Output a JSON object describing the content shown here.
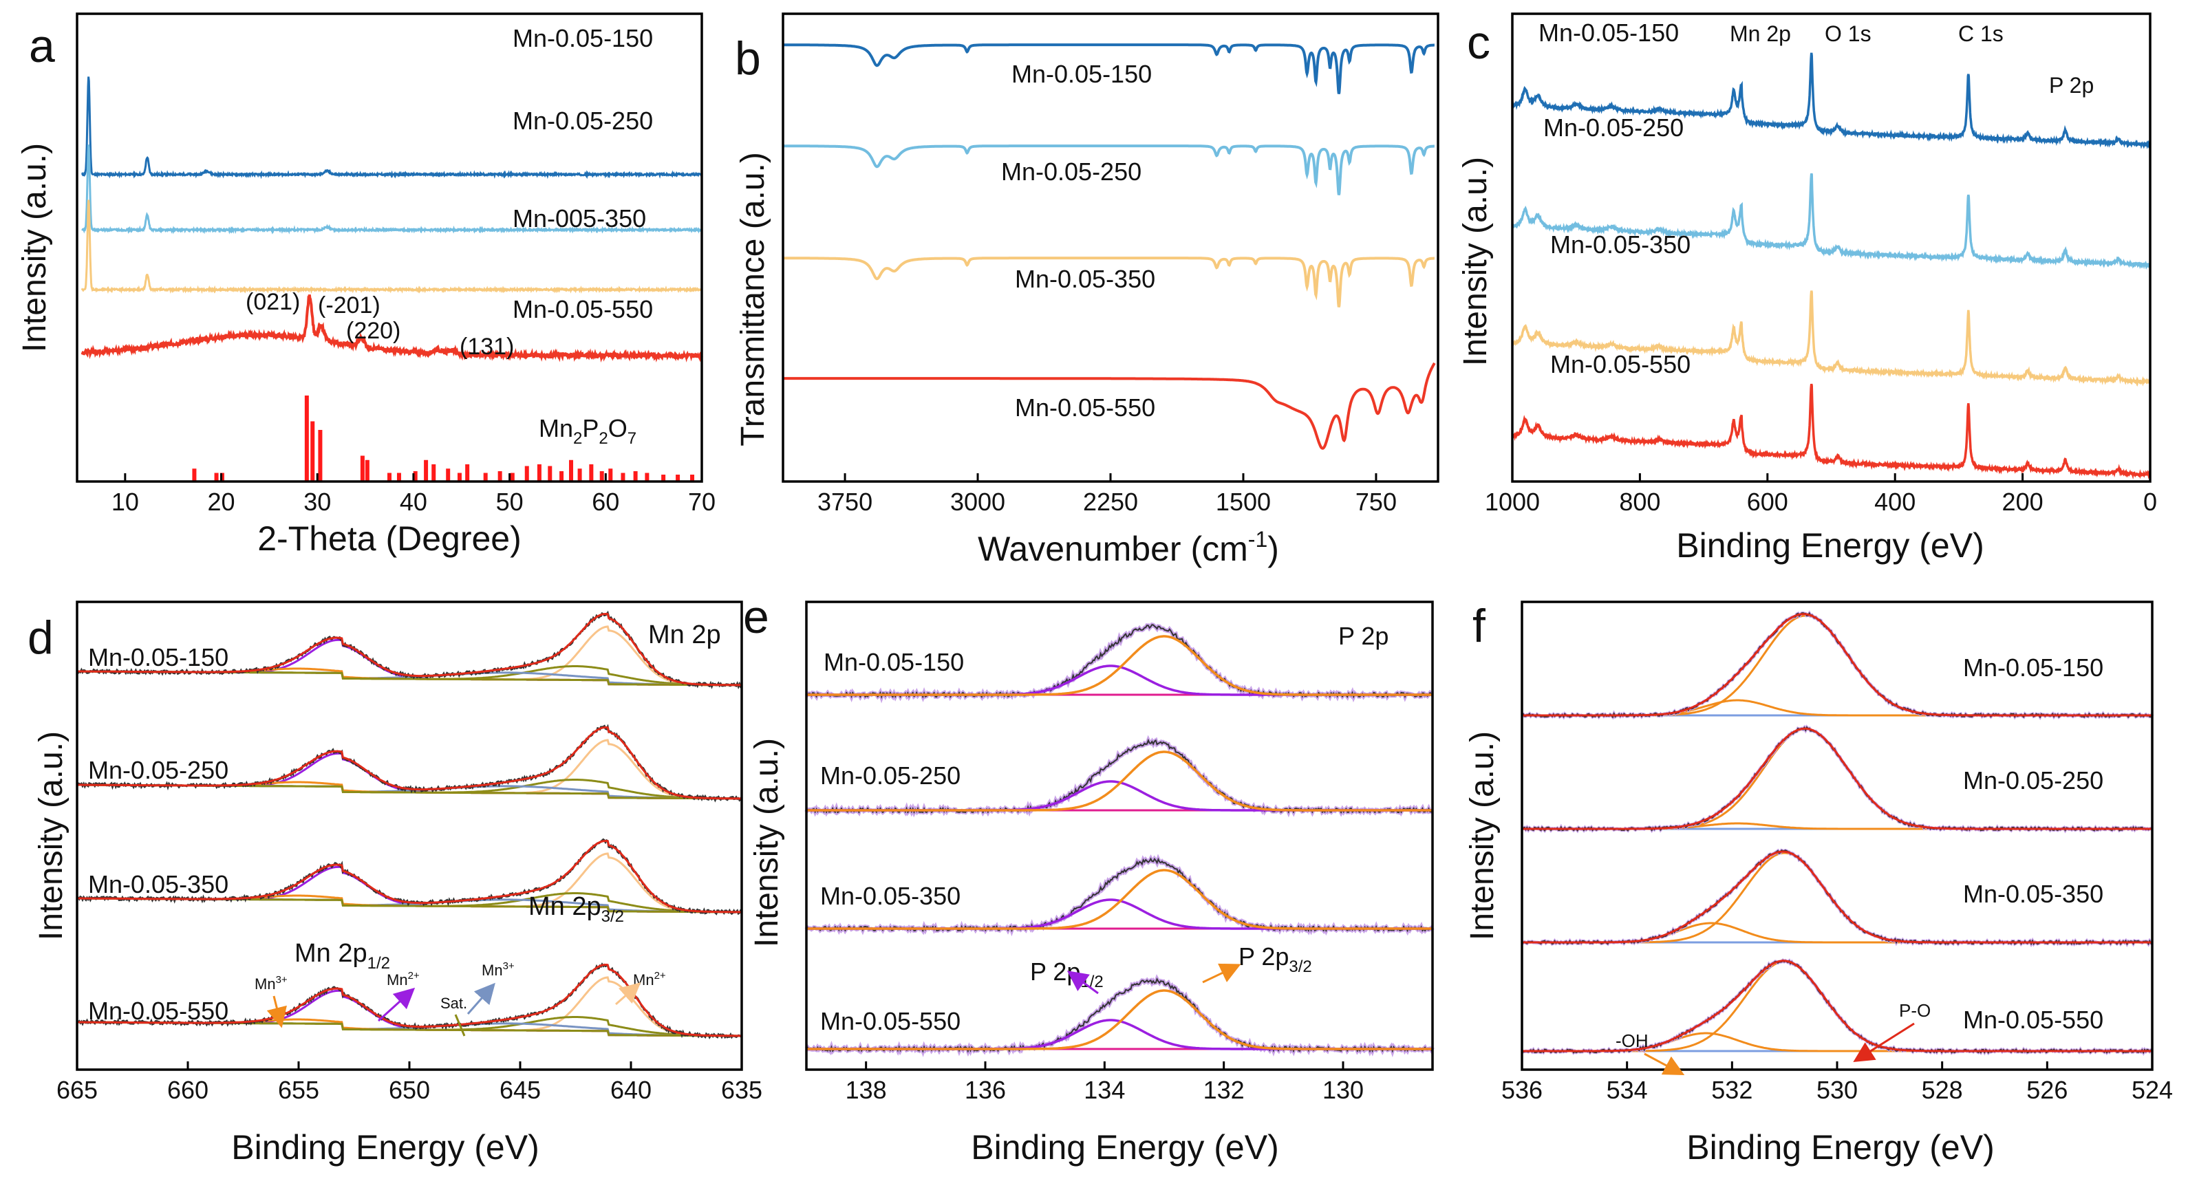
{
  "colors": {
    "blue": "#1f6fb4",
    "light_blue": "#72bde0",
    "yellow": "#f7c97c",
    "red": "#ee3826",
    "bar_red": "#ff1a1a",
    "black": "#333333",
    "purple": "#9b1fe0",
    "orange": "#f28c1c",
    "peach": "#f9c48a",
    "olive": "#8c8c18",
    "steel": "#7893c2",
    "lilac": "#c9a3e8",
    "magenta": "#e01d8f",
    "fit_red": "#e02a1a",
    "base_blue": "#7c9ee0"
  },
  "chart_data": [
    {
      "panel": "a",
      "type": "line",
      "xlabel": "2-Theta (Degree)",
      "ylabel": "Intensity (a.u.)",
      "xlim": [
        5,
        70
      ],
      "xticks": [
        10,
        20,
        30,
        40,
        50,
        60,
        70
      ],
      "series": [
        {
          "name": "Mn-0.05-150",
          "label": "Mn-0.05-150",
          "color": "blue",
          "baseline": 7.2,
          "peaks": [
            {
              "x": 6.2,
              "h": 2.3,
              "w": 0.12
            },
            {
              "x": 12.3,
              "h": 0.4,
              "w": 0.15
            },
            {
              "x": 18.5,
              "h": 0.08,
              "w": 0.3
            },
            {
              "x": 31,
              "h": 0.08,
              "w": 0.3
            }
          ]
        },
        {
          "name": "Mn-0.05-250",
          "label": "Mn-0.05-250",
          "color": "light_blue",
          "baseline": 5.9,
          "peaks": [
            {
              "x": 6.2,
              "h": 2.0,
              "w": 0.12
            },
            {
              "x": 12.3,
              "h": 0.35,
              "w": 0.15
            },
            {
              "x": 31,
              "h": 0.07,
              "w": 0.3
            }
          ]
        },
        {
          "name": "Mn-005-350",
          "label": "Mn-005-350",
          "color": "yellow",
          "baseline": 4.5,
          "peaks": [
            {
              "x": 6.2,
              "h": 2.1,
              "w": 0.12
            },
            {
              "x": 12.3,
              "h": 0.35,
              "w": 0.15
            }
          ]
        },
        {
          "name": "Mn-0.05-550",
          "label": "Mn-0.05-550",
          "color": "red",
          "baseline": 2.95,
          "hump": {
            "x": 24,
            "h": 0.45,
            "w": 8
          },
          "peaks": [
            {
              "x": 29.2,
              "h": 1.0,
              "w": 0.25
            },
            {
              "x": 30.4,
              "h": 0.35,
              "w": 0.3
            },
            {
              "x": 34.6,
              "h": 0.2,
              "w": 0.3
            },
            {
              "x": 42.5,
              "h": 0.1,
              "w": 0.4
            },
            {
              "x": 44,
              "h": 0.1,
              "w": 0.4
            }
          ]
        }
      ],
      "reference": {
        "label": "Mn",
        "label_sub1": "2",
        "label_mid": "P",
        "label_sub2": "2",
        "label_mid2": "O",
        "label_sub3": "7",
        "bars": [
          [
            17.2,
            0.15
          ],
          [
            19.5,
            0.1
          ],
          [
            20.1,
            0.1
          ],
          [
            28.9,
            1.0
          ],
          [
            29.5,
            0.7
          ],
          [
            30.3,
            0.6
          ],
          [
            34.7,
            0.3
          ],
          [
            35.2,
            0.25
          ],
          [
            37.5,
            0.1
          ],
          [
            38.5,
            0.1
          ],
          [
            40.2,
            0.12
          ],
          [
            41.3,
            0.25
          ],
          [
            42.1,
            0.2
          ],
          [
            43.6,
            0.15
          ],
          [
            44.8,
            0.1
          ],
          [
            45.6,
            0.2
          ],
          [
            47.5,
            0.1
          ],
          [
            49,
            0.12
          ],
          [
            50.3,
            0.1
          ],
          [
            51.8,
            0.18
          ],
          [
            53.1,
            0.2
          ],
          [
            54.2,
            0.18
          ],
          [
            55.4,
            0.12
          ],
          [
            56.4,
            0.25
          ],
          [
            57.3,
            0.15
          ],
          [
            58.5,
            0.2
          ],
          [
            59.6,
            0.12
          ],
          [
            60.5,
            0.15
          ],
          [
            61.8,
            0.1
          ],
          [
            63.1,
            0.12
          ],
          [
            64.3,
            0.1
          ],
          [
            66,
            0.08
          ],
          [
            67.5,
            0.08
          ],
          [
            69,
            0.08
          ]
        ]
      },
      "annotations": [
        "(021)",
        "(-201)",
        "(220)",
        "(131)"
      ]
    },
    {
      "panel": "b",
      "type": "line",
      "xlabel": "Wavenumber (cm",
      "xlabel_sup": "-1",
      "xlabel_end": ")",
      "ylabel": "Transmittance (a.u.)",
      "xlim": [
        4100,
        400
      ],
      "xticks": [
        3750,
        3000,
        2250,
        1500,
        750
      ],
      "series": [
        {
          "name": "Mn-0.05-150",
          "label": "Mn-0.05-150",
          "color": "blue"
        },
        {
          "name": "Mn-0.05-250",
          "label": "Mn-0.05-250",
          "color": "light_blue"
        },
        {
          "name": "Mn-0.05-350",
          "label": "Mn-0.05-350",
          "color": "yellow"
        },
        {
          "name": "Mn-0.05-550",
          "label": "Mn-0.05-550",
          "color": "red"
        }
      ]
    },
    {
      "panel": "c",
      "type": "line",
      "xlabel": "Binding Energy (eV)",
      "ylabel": "Intensity (a.u.)",
      "xlim": [
        1000,
        0
      ],
      "xticks": [
        1000,
        800,
        600,
        400,
        200,
        0
      ],
      "series": [
        {
          "name": "Mn-0.05-150",
          "label": "Mn-0.05-150",
          "color": "blue"
        },
        {
          "name": "Mn-0.05-250",
          "label": "Mn-0.05-250",
          "color": "light_blue"
        },
        {
          "name": "Mn-0.05-350",
          "label": "Mn-0.05-350",
          "color": "yellow"
        },
        {
          "name": "Mn-0.05-550",
          "label": "Mn-0.05-550",
          "color": "red"
        }
      ],
      "annotations": [
        "Mn 2p",
        "O 1s",
        "C 1s",
        "P 2p"
      ]
    },
    {
      "panel": "d",
      "type": "line",
      "xlabel": "Binding Energy (eV)",
      "ylabel": "Intensity (a.u.)",
      "xlim": [
        665,
        635
      ],
      "xticks": [
        665,
        660,
        655,
        650,
        645,
        640,
        635
      ],
      "series": [
        {
          "name": "Mn-0.05-150",
          "label": "Mn-0.05-150"
        },
        {
          "name": "Mn-0.05-250",
          "label": "Mn-0.05-250"
        },
        {
          "name": "Mn-0.05-350",
          "label": "Mn-0.05-350"
        },
        {
          "name": "Mn-0.05-550",
          "label": "Mn-0.05-550"
        }
      ],
      "title": "Mn 2p",
      "annotations": [
        "Mn 2p",
        "1/2",
        "3/2",
        "Mn",
        "3+",
        "2+",
        "Sat."
      ]
    },
    {
      "panel": "e",
      "type": "line",
      "xlabel": "Binding Energy (eV)",
      "ylabel": "Intensity (a.u.)",
      "xlim": [
        139,
        128.5
      ],
      "xticks": [
        138,
        136,
        134,
        132,
        130
      ],
      "series": [
        {
          "name": "Mn-0.05-150",
          "label": "Mn-0.05-150"
        },
        {
          "name": "Mn-0.05-250",
          "label": "Mn-0.05-250"
        },
        {
          "name": "Mn-0.05-350",
          "label": "Mn-0.05-350"
        },
        {
          "name": "Mn-0.05-550",
          "label": "Mn-0.05-550"
        }
      ],
      "title": "P 2p",
      "annotations": [
        "P 2p",
        "1/2",
        "3/2"
      ]
    },
    {
      "panel": "f",
      "type": "line",
      "xlabel": "Binding Energy (eV)",
      "ylabel": "Intensity (a.u.)",
      "xlim": [
        536,
        524
      ],
      "xticks": [
        536,
        534,
        532,
        530,
        528,
        526,
        524
      ],
      "series": [
        {
          "name": "Mn-0.05-150",
          "label": "Mn-0.05-150"
        },
        {
          "name": "Mn-0.05-250",
          "label": "Mn-0.05-250"
        },
        {
          "name": "Mn-0.05-350",
          "label": "Mn-0.05-350"
        },
        {
          "name": "Mn-0.05-550",
          "label": "Mn-0.05-550"
        }
      ],
      "annotations": [
        "-OH",
        "P-O"
      ]
    }
  ]
}
